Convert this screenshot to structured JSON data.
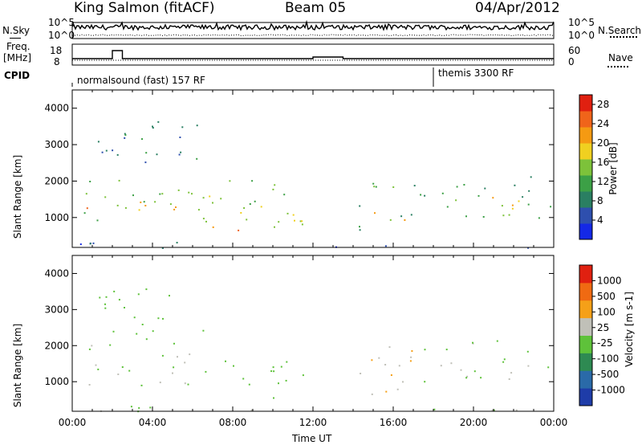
{
  "header": {
    "station": "King Salmon (fitACF)",
    "beam": "Beam 05",
    "date": "04/Apr/2012"
  },
  "panels": {
    "nsky_label": "N.Sky",
    "nsearch_label": "N.Search",
    "freq_label_top": "Freq.",
    "freq_label_unit": "[MHz]",
    "nave_label": "Nave",
    "cpid_label": "CPID",
    "left_ticks_counts": [
      "10^5",
      "10^0"
    ],
    "right_ticks_counts": [
      "10^5",
      "10^0"
    ],
    "left_ticks_freq": [
      "18",
      "8"
    ],
    "right_ticks_nave": [
      "60",
      "0"
    ],
    "cpid_segments": [
      {
        "label": "normalsound (fast) 157 RF",
        "start_hour": 0
      },
      {
        "label": "themis 3300 RF",
        "start_hour": 18
      }
    ]
  },
  "chart_data": [
    {
      "type": "heatmap",
      "quantity": "Power",
      "ylabel": "Slant Range [km]",
      "xlabel": "Time UT",
      "y_ticks": [
        1000,
        2000,
        3000,
        4000
      ],
      "ylim": [
        180,
        4500
      ],
      "x_ticks": [
        "00:00",
        "04:00",
        "08:00",
        "12:00",
        "16:00",
        "20:00",
        "00:00"
      ],
      "xlim_hours": [
        0,
        24
      ],
      "colorbar": {
        "label": "Power [dB]",
        "ticks": [
          "4",
          "8",
          "12",
          "16",
          "20",
          "24",
          "28"
        ],
        "range": [
          0,
          30
        ],
        "colors": [
          "#1428e6",
          "#2e4fae",
          "#2a7f62",
          "#3ca046",
          "#7dc23a",
          "#f0d020",
          "#f59a12",
          "#f0641a",
          "#e02010"
        ]
      },
      "regions": [
        {
          "t0": 0.0,
          "t1": 11.0,
          "r0": 900,
          "r1": 2100,
          "level": 14
        },
        {
          "t0": 0.0,
          "t1": 6.5,
          "r0": 1150,
          "r1": 1500,
          "level": 22
        },
        {
          "t0": 6.5,
          "t1": 11.8,
          "r0": 550,
          "r1": 1400,
          "level": 18
        },
        {
          "t0": 7.5,
          "t1": 9.5,
          "r0": 650,
          "r1": 900,
          "level": 26
        },
        {
          "t0": 1.0,
          "t1": 6.5,
          "r0": 2200,
          "r1": 3700,
          "level": 8
        },
        {
          "t0": 14.0,
          "t1": 17.5,
          "r0": 600,
          "r1": 2000,
          "level": 12
        },
        {
          "t0": 15.0,
          "t1": 17.0,
          "r0": 900,
          "r1": 1300,
          "level": 20
        },
        {
          "t0": 17.5,
          "t1": 24.0,
          "r0": 1000,
          "r1": 2200,
          "level": 11
        },
        {
          "t0": 19.0,
          "t1": 22.5,
          "r0": 1200,
          "r1": 1600,
          "level": 20
        },
        {
          "t0": 0.0,
          "t1": 24.0,
          "r0": 180,
          "r1": 350,
          "level": 6
        }
      ]
    },
    {
      "type": "heatmap",
      "quantity": "Velocity",
      "ylabel": "Slant Range [km]",
      "xlabel": "Time UT",
      "y_ticks": [
        1000,
        2000,
        3000,
        4000
      ],
      "ylim": [
        180,
        4500
      ],
      "x_ticks": [
        "00:00",
        "04:00",
        "08:00",
        "12:00",
        "16:00",
        "20:00",
        "00:00"
      ],
      "xlim_hours": [
        0,
        24
      ],
      "colorbar": {
        "label": "Velocity [m s-1]",
        "ticks": [
          "1000",
          "500",
          "100",
          "25",
          "-25",
          "-100",
          "-500",
          "-1000"
        ],
        "range": [
          -1200,
          1200
        ],
        "colors": [
          "#1e3ca8",
          "#2a6aa8",
          "#2e8a52",
          "#5ec23a",
          "#c0c0b8",
          "#f5a018",
          "#f06a12",
          "#e02010"
        ]
      },
      "regions": [
        {
          "t0": 0.0,
          "t1": 6.0,
          "r0": 900,
          "r1": 2100,
          "value": 0
        },
        {
          "t0": 1.0,
          "t1": 6.5,
          "r0": 2200,
          "r1": 3600,
          "value": -150
        },
        {
          "t0": 6.5,
          "t1": 11.5,
          "r0": 550,
          "r1": 1700,
          "value": -200
        },
        {
          "t0": 5.0,
          "t1": 7.0,
          "r0": 600,
          "r1": 1000,
          "value": 0
        },
        {
          "t0": 14.0,
          "t1": 17.5,
          "r0": 650,
          "r1": 2000,
          "value": 300
        },
        {
          "t0": 15.5,
          "t1": 17.2,
          "r0": 650,
          "r1": 1200,
          "value": 80
        },
        {
          "t0": 17.5,
          "t1": 24.0,
          "r0": 1000,
          "r1": 2200,
          "value": 0
        },
        {
          "t0": 0.0,
          "t1": 24.0,
          "r0": 180,
          "r1": 350,
          "value": 0
        }
      ]
    }
  ]
}
